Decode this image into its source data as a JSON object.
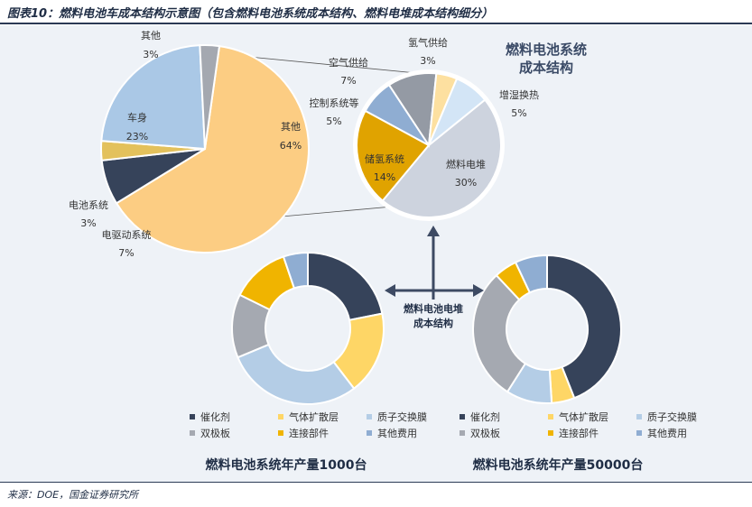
{
  "title": "图表10：燃料电池车成本结构示意图（包含燃料电池系统成本结构、燃料电堆成本结构细分）",
  "source": "来源：DOE，国金证券研究所",
  "colors": {
    "navy": "#36435a",
    "gold": "#fed666",
    "lightblue": "#b4cde6",
    "gray": "#a5a9b1",
    "amber": "#f0b400",
    "steel": "#8fadd2",
    "peach": "#fccd83",
    "carblue": "#aac8e6",
    "fcgray": "#cdd3de",
    "cyan": "#d3e5f6",
    "orangegold": "#e0a300",
    "slate": "#949aa4",
    "paleyellow": "#fde0a0",
    "battery": "#e3c15c",
    "darkgray": "#a4a8b0"
  },
  "chart_data": [
    {
      "type": "pie",
      "categories": [
        "其他",
        "电驱动系统",
        "电池系统",
        "车身",
        "其他"
      ],
      "labels": [
        "其他",
        "电驱动系统",
        "电池系统",
        "车身",
        "其他"
      ],
      "values": [
        64,
        7,
        3,
        23,
        3
      ],
      "value_labels": [
        "64%",
        "7%",
        "3%",
        "23%",
        "3%"
      ]
    },
    {
      "type": "pie",
      "title": "燃料电池系统成本结构",
      "title_lines": [
        "燃料电池系统",
        "成本结构"
      ],
      "categories": [
        "燃料电堆",
        "储氢系统",
        "控制系统等",
        "空气供给",
        "氢气供给",
        "增湿换热"
      ],
      "values": [
        30,
        14,
        5,
        7,
        3,
        5
      ],
      "value_labels": [
        "30%",
        "14%",
        "5%",
        "7%",
        "3%",
        "5%"
      ]
    },
    {
      "type": "pie",
      "title": "燃料电池系统年产量1000台",
      "categories": [
        "催化剂",
        "气体扩散层",
        "质子交换膜",
        "双极板",
        "连接部件",
        "其他费用"
      ],
      "values": [
        21,
        17,
        28,
        13,
        12,
        5
      ]
    },
    {
      "type": "pie",
      "title": "燃料电池系统年产量50000台",
      "categories": [
        "催化剂",
        "气体扩散层",
        "质子交换膜",
        "双极板",
        "连接部件",
        "其他费用"
      ],
      "values": [
        44,
        5,
        10,
        29,
        5,
        7
      ]
    }
  ],
  "center_label_lines": [
    "燃料电池电堆",
    "成本结构"
  ],
  "legend_items": [
    "催化剂",
    "气体扩散层",
    "质子交换膜",
    "双极板",
    "连接部件",
    "其他费用"
  ]
}
